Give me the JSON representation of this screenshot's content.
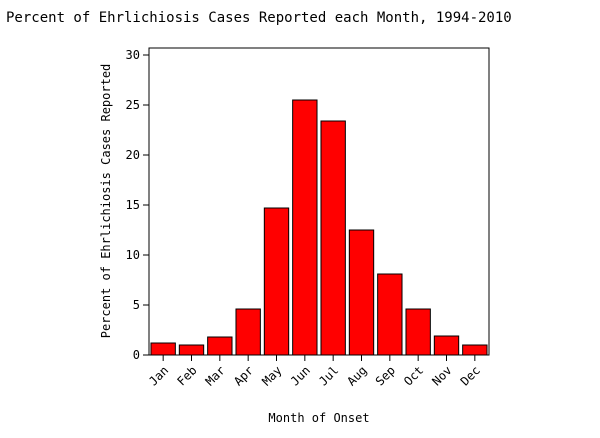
{
  "chart_data": {
    "type": "bar",
    "title": "Percent of Ehrlichiosis Cases Reported each Month, 1994-2010",
    "x_label": "Month of Onset",
    "y_label": "Percent of Ehrlichiosis Cases Reported",
    "categories": [
      "Jan",
      "Feb",
      "Mar",
      "Apr",
      "May",
      "Jun",
      "Jul",
      "Aug",
      "Sep",
      "Oct",
      "Nov",
      "Dec"
    ],
    "values": [
      1.2,
      1.0,
      1.8,
      4.6,
      14.7,
      25.5,
      23.4,
      12.5,
      8.1,
      4.6,
      1.9,
      1.0
    ],
    "color": "#ff0000",
    "ylim": [
      0,
      30.7
    ],
    "yticks": [
      0,
      5,
      10,
      15,
      20,
      25,
      30
    ]
  }
}
